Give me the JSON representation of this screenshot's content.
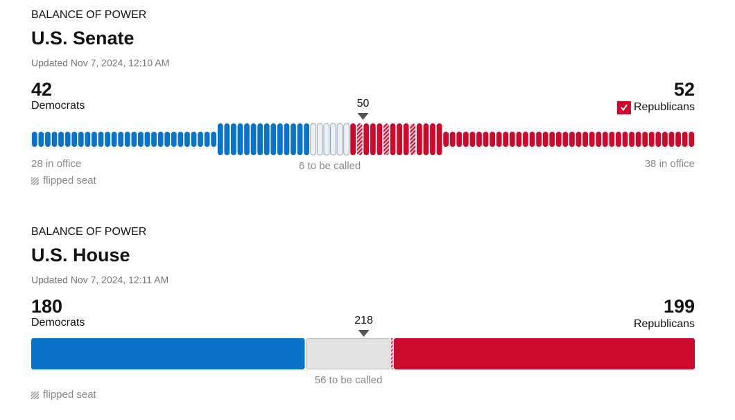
{
  "chart_data": [
    {
      "type": "seats",
      "kicker": "BALANCE OF POWER",
      "title": "U.S. Senate",
      "updated": "Updated  Nov 7, 2024, 12:10 AM",
      "parties": [
        {
          "name": "Democrats",
          "total": 42,
          "in_office": 28,
          "in_office_label": "28 in office",
          "color": "#0873c9",
          "flipped": 0,
          "winner": false
        },
        {
          "name": "Republicans",
          "total": 52,
          "in_office": 38,
          "in_office_label": "38 in office",
          "color": "#cc0a2e",
          "flipped": 3,
          "winner": true
        }
      ],
      "uncalled": 6,
      "uncalled_label": "6 to be called",
      "majority": 50,
      "legend": "flipped seat"
    },
    {
      "type": "blocks",
      "kicker": "BALANCE OF POWER",
      "title": "U.S. House",
      "updated": "Updated  Nov 7, 2024, 12:11 AM",
      "parties": [
        {
          "name": "Democrats",
          "total": 180,
          "color": "#0873c9",
          "flipped": 0,
          "winner": false
        },
        {
          "name": "Republicans",
          "total": 199,
          "color": "#cc0a2e",
          "flipped": 1,
          "winner": false
        }
      ],
      "uncalled": 56,
      "uncalled_label": "56 to be called",
      "majority": 218,
      "legend": "flipped seat"
    }
  ]
}
